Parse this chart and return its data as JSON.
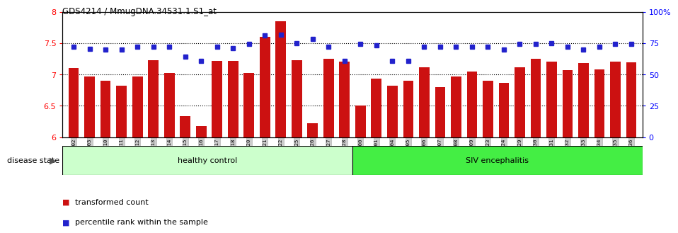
{
  "title": "GDS4214 / MmugDNA.34531.1.S1_at",
  "samples": [
    "GSM347802",
    "GSM347803",
    "GSM347810",
    "GSM347811",
    "GSM347812",
    "GSM347813",
    "GSM347814",
    "GSM347815",
    "GSM347816",
    "GSM347817",
    "GSM347818",
    "GSM347820",
    "GSM347821",
    "GSM347822",
    "GSM347825",
    "GSM347826",
    "GSM347827",
    "GSM347828",
    "GSM347800",
    "GSM347801",
    "GSM347804",
    "GSM347805",
    "GSM347806",
    "GSM347807",
    "GSM347808",
    "GSM347809",
    "GSM347823",
    "GSM347824",
    "GSM347829",
    "GSM347830",
    "GSM347831",
    "GSM347832",
    "GSM347833",
    "GSM347834",
    "GSM347835",
    "GSM347836"
  ],
  "red_values": [
    7.1,
    6.97,
    6.9,
    6.82,
    6.97,
    7.23,
    7.02,
    6.33,
    6.18,
    7.22,
    7.22,
    7.02,
    7.6,
    7.85,
    7.23,
    6.22,
    7.25,
    7.21,
    6.5,
    6.93,
    6.82,
    6.9,
    7.12,
    6.8,
    6.97,
    7.05,
    6.9,
    6.87,
    7.12,
    7.25,
    7.2,
    7.07,
    7.18,
    7.08,
    7.2,
    7.19
  ],
  "blue_values": [
    7.44,
    7.41,
    7.4,
    7.4,
    7.44,
    7.44,
    7.44,
    7.28,
    7.22,
    7.44,
    7.42,
    7.49,
    7.62,
    7.63,
    7.5,
    7.57,
    7.44,
    7.22,
    7.49,
    7.47,
    7.22,
    7.22,
    7.44,
    7.44,
    7.44,
    7.44,
    7.44,
    7.4,
    7.49,
    7.49,
    7.5,
    7.44,
    7.4,
    7.44,
    7.49,
    7.49
  ],
  "healthy_count": 18,
  "siv_count": 18,
  "ylim_left": [
    6.0,
    8.0
  ],
  "ylim_right": [
    0,
    100
  ],
  "yticks_left": [
    6.0,
    6.5,
    7.0,
    7.5,
    8.0
  ],
  "yticks_right": [
    0,
    25,
    50,
    75,
    100
  ],
  "bar_color": "#cc1111",
  "dot_color": "#2222cc",
  "healthy_color": "#ccffcc",
  "siv_color": "#44ee44",
  "xtick_bg": "#cccccc",
  "grid_color": "#000000",
  "legend_red_label": "transformed count",
  "legend_blue_label": "percentile rank within the sample",
  "healthy_label": "healthy control",
  "siv_label": "SIV encephalitis",
  "disease_state_label": "disease state"
}
